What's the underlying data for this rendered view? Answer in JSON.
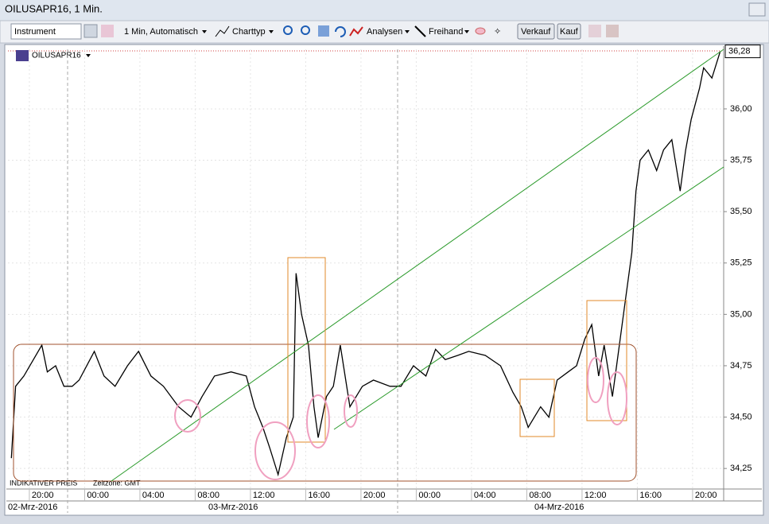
{
  "window": {
    "title": "OILUSAPR16, 1 Min."
  },
  "toolbar": {
    "instrument": "Instrument",
    "interval": "1 Min,  Automatisch",
    "chart_type": "Charttyp",
    "analysis": "Analysen",
    "freehand": "Freihand",
    "sell": "Verkauf",
    "buy": "Kauf"
  },
  "chart_data": {
    "type": "line",
    "instrument": "OILUSAPR16",
    "footer": "INDIKATIVER PREIS",
    "timezone": "Zeitzone: GMT",
    "last_price": {
      "value": 36.28,
      "label": "36,28"
    },
    "dates": [
      "02-Mrz-2016",
      "03-Mrz-2016",
      "04-Mrz-2016"
    ],
    "series": [
      {
        "name": "OILUSAPR16",
        "color": "#000000",
        "x": [
          18.7,
          19.0,
          19.6,
          20.9,
          21.3,
          21.9,
          22.5,
          23.1,
          23.6,
          24.7,
          25.4,
          26.2,
          27.1,
          27.9,
          28.8,
          29.7,
          30.8,
          31.7,
          32.5,
          33.4,
          34.6,
          35.7,
          36.3,
          36.9,
          37.4,
          38.0,
          38.6,
          39.1,
          39.3,
          39.7,
          40.2,
          40.6,
          40.9,
          41.5,
          42.0,
          42.5,
          43.2,
          44.1,
          44.9,
          46.1,
          46.9,
          47.8,
          48.7,
          49.4,
          50.1,
          51.0,
          51.8,
          53.0,
          54.1,
          55.0,
          55.6,
          56.1,
          57.0,
          57.6,
          58.2,
          59.0,
          59.6,
          60.2,
          60.7,
          61.2,
          61.6,
          62.2,
          62.6,
          63.0,
          63.6,
          63.9,
          64.2,
          64.8,
          65.4,
          65.9,
          66.5,
          67.1,
          67.5,
          67.9,
          68.5,
          68.8,
          69.4,
          70.0
        ],
        "values": [
          34.3,
          34.65,
          34.7,
          34.85,
          34.72,
          34.75,
          34.65,
          34.65,
          34.68,
          34.82,
          34.7,
          34.65,
          34.75,
          34.82,
          34.7,
          34.65,
          34.55,
          34.5,
          34.6,
          34.7,
          34.72,
          34.7,
          34.55,
          34.45,
          34.35,
          34.22,
          34.4,
          34.5,
          35.2,
          35.0,
          34.85,
          34.55,
          34.4,
          34.6,
          34.65,
          34.85,
          34.55,
          34.65,
          34.68,
          34.65,
          34.65,
          34.75,
          34.7,
          34.83,
          34.78,
          34.8,
          34.82,
          34.8,
          34.75,
          34.62,
          34.55,
          34.45,
          34.55,
          34.5,
          34.68,
          34.72,
          34.75,
          34.88,
          34.95,
          34.7,
          34.85,
          34.6,
          34.8,
          35.0,
          35.3,
          35.6,
          35.75,
          35.8,
          35.7,
          35.8,
          35.85,
          35.6,
          35.8,
          35.95,
          36.1,
          36.2,
          36.15,
          36.28
        ]
      }
    ],
    "xlim": [
      18.45,
      70.25
    ],
    "xticks": [
      {
        "value": 20,
        "label": "20:00"
      },
      {
        "value": 24,
        "label": "00:00"
      },
      {
        "value": 28,
        "label": "04:00"
      },
      {
        "value": 32,
        "label": "08:00"
      },
      {
        "value": 36,
        "label": "12:00"
      },
      {
        "value": 40,
        "label": "16:00"
      },
      {
        "value": 44,
        "label": "20:00"
      },
      {
        "value": 48,
        "label": "00:00"
      },
      {
        "value": 52,
        "label": "04:00"
      },
      {
        "value": 56,
        "label": "08:00"
      },
      {
        "value": 60,
        "label": "12:00"
      },
      {
        "value": 64,
        "label": "16:00"
      },
      {
        "value": 68,
        "label": "20:00"
      }
    ],
    "ylim": [
      34.15,
      36.29
    ],
    "yticks": [
      {
        "value": 34.25,
        "label": "34,25"
      },
      {
        "value": 34.5,
        "label": "34,50"
      },
      {
        "value": 34.75,
        "label": "34,75"
      },
      {
        "value": 35,
        "label": "35,00"
      },
      {
        "value": 35.25,
        "label": "35,25"
      },
      {
        "value": 35.5,
        "label": "35,50"
      },
      {
        "value": 35.75,
        "label": "35,75"
      },
      {
        "value": 36,
        "label": "36,00"
      }
    ],
    "grid": true
  }
}
